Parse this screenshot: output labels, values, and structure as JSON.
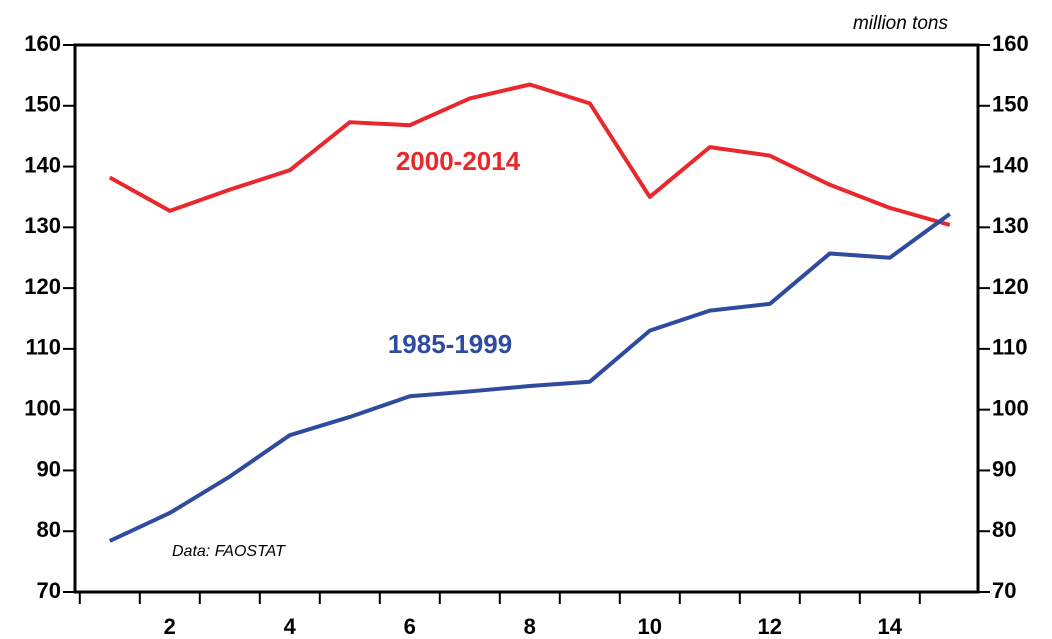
{
  "chart_data": {
    "type": "line",
    "unit_label": "million tons",
    "annotation": "Data: FAOSTAT",
    "x": [
      1,
      2,
      3,
      4,
      5,
      6,
      7,
      8,
      9,
      10,
      11,
      12,
      13,
      14,
      15
    ],
    "series": [
      {
        "name": "2000-2014",
        "color": "#e8282d",
        "values": [
          138.2,
          132.7,
          136.2,
          139.4,
          147.3,
          146.8,
          151.2,
          153.5,
          150.4,
          135.0,
          143.2,
          141.8,
          137.0,
          133.2,
          130.4
        ]
      },
      {
        "name": "1985-1999",
        "color": "#2e4b9e",
        "values": [
          78.4,
          83.0,
          89.0,
          95.8,
          98.8,
          102.2,
          103.0,
          103.9,
          104.6,
          113.0,
          116.3,
          117.4,
          125.7,
          125.0,
          132.2
        ]
      }
    ],
    "xlim": [
      0.42,
      15.47
    ],
    "xticks": [
      2,
      4,
      6,
      8,
      10,
      12,
      14
    ],
    "xminorticks": [
      0.5,
      1.5,
      2.5,
      3.5,
      4.5,
      5.5,
      6.5,
      7.5,
      8.5,
      9.5,
      10.5,
      11.5,
      12.5,
      13.5,
      14.5
    ],
    "ylim": [
      70,
      160
    ],
    "yticks": [
      70,
      80,
      90,
      100,
      110,
      120,
      130,
      140,
      150,
      160
    ],
    "y2lim": [
      70,
      160
    ],
    "y2ticks": [
      70,
      80,
      90,
      100,
      110,
      120,
      130,
      140,
      150,
      160
    ],
    "grid": false
  }
}
